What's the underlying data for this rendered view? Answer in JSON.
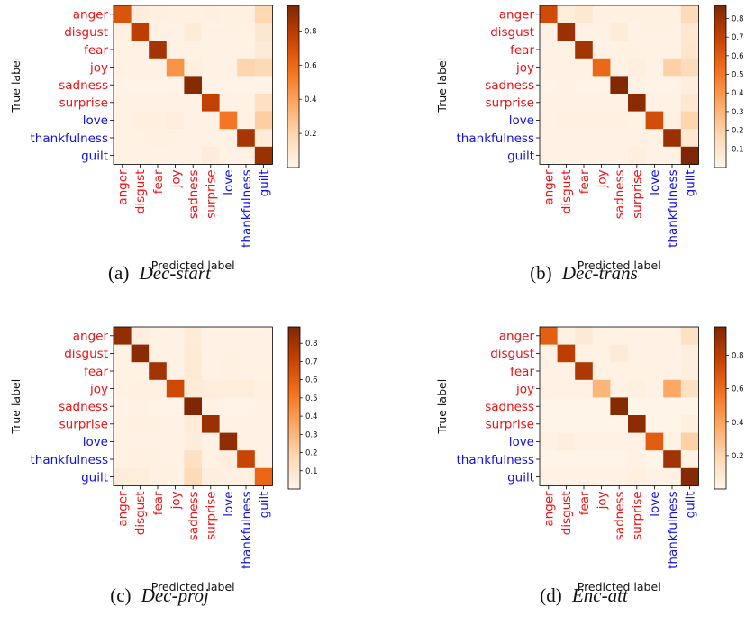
{
  "colors": {
    "class_a": "#ee1111",
    "class_b": "#1111dd"
  },
  "chart_data": [
    {
      "type": "heatmap",
      "caption_label": "(a)",
      "caption_name": "Dec-start",
      "xlabel": "Predicted label",
      "ylabel": "True label",
      "labels": [
        "anger",
        "disgust",
        "fear",
        "joy",
        "sadness",
        "surprise",
        "love",
        "thankfulness",
        "guilt"
      ],
      "label_colors": [
        "red",
        "red",
        "red",
        "red",
        "red",
        "red",
        "blue",
        "blue",
        "blue"
      ],
      "colorbar": {
        "min": 0,
        "max": 0.95,
        "ticks": [
          "0.2",
          "0.4",
          "0.6",
          "0.8"
        ],
        "tick_values": [
          0.2,
          0.4,
          0.6,
          0.8
        ]
      },
      "matrix": [
        [
          0.68,
          0.05,
          0.04,
          0.03,
          0.03,
          0.04,
          0.03,
          0.03,
          0.19
        ],
        [
          0.03,
          0.78,
          0.02,
          0.02,
          0.06,
          0.02,
          0.02,
          0.02,
          0.09
        ],
        [
          0.02,
          0.02,
          0.85,
          0.02,
          0.02,
          0.02,
          0.02,
          0.02,
          0.07
        ],
        [
          0.02,
          0.02,
          0.02,
          0.45,
          0.04,
          0.02,
          0.02,
          0.2,
          0.18
        ],
        [
          0.01,
          0.01,
          0.01,
          0.01,
          0.93,
          0.01,
          0.01,
          0.01,
          0.01
        ],
        [
          0.02,
          0.02,
          0.02,
          0.02,
          0.02,
          0.77,
          0.02,
          0.02,
          0.14
        ],
        [
          0.02,
          0.04,
          0.04,
          0.05,
          0.02,
          0.02,
          0.55,
          0.02,
          0.23
        ],
        [
          0.02,
          0.02,
          0.03,
          0.02,
          0.02,
          0.02,
          0.02,
          0.84,
          0.06
        ],
        [
          0.02,
          0.02,
          0.02,
          0.02,
          0.02,
          0.05,
          0.02,
          0.02,
          0.88
        ]
      ]
    },
    {
      "type": "heatmap",
      "caption_label": "(b)",
      "caption_name": "Dec-trans",
      "xlabel": "Predicted label",
      "ylabel": "True label",
      "labels": [
        "anger",
        "disgust",
        "fear",
        "joy",
        "sadness",
        "surprise",
        "love",
        "thankfulness",
        "guilt"
      ],
      "label_colors": [
        "red",
        "red",
        "red",
        "red",
        "red",
        "red",
        "blue",
        "blue",
        "blue"
      ],
      "colorbar": {
        "min": 0,
        "max": 0.87,
        "ticks": [
          "0.1",
          "0.2",
          "0.3",
          "0.4",
          "0.5",
          "0.6",
          "0.7",
          "0.8"
        ],
        "tick_values": [
          0.1,
          0.2,
          0.3,
          0.4,
          0.5,
          0.6,
          0.7,
          0.8
        ]
      },
      "matrix": [
        [
          0.66,
          0.05,
          0.08,
          0.03,
          0.03,
          0.03,
          0.03,
          0.03,
          0.16
        ],
        [
          0.02,
          0.8,
          0.02,
          0.02,
          0.06,
          0.02,
          0.02,
          0.02,
          0.08
        ],
        [
          0.02,
          0.02,
          0.78,
          0.02,
          0.02,
          0.02,
          0.02,
          0.02,
          0.09
        ],
        [
          0.02,
          0.02,
          0.02,
          0.55,
          0.02,
          0.04,
          0.02,
          0.2,
          0.15
        ],
        [
          0.01,
          0.02,
          0.01,
          0.01,
          0.86,
          0.02,
          0.01,
          0.01,
          0.04
        ],
        [
          0.02,
          0.02,
          0.02,
          0.02,
          0.02,
          0.84,
          0.02,
          0.02,
          0.08
        ],
        [
          0.02,
          0.03,
          0.03,
          0.03,
          0.03,
          0.02,
          0.65,
          0.03,
          0.18
        ],
        [
          0.02,
          0.02,
          0.02,
          0.02,
          0.02,
          0.02,
          0.02,
          0.8,
          0.08
        ],
        [
          0.02,
          0.02,
          0.02,
          0.02,
          0.02,
          0.04,
          0.02,
          0.02,
          0.87
        ]
      ]
    },
    {
      "type": "heatmap",
      "caption_label": "(c)",
      "caption_name": "Dec-proj",
      "xlabel": "Predicted label",
      "ylabel": "True label",
      "labels": [
        "anger",
        "disgust",
        "fear",
        "joy",
        "sadness",
        "surprise",
        "love",
        "thankfulness",
        "guilt"
      ],
      "label_colors": [
        "red",
        "red",
        "red",
        "red",
        "red",
        "red",
        "blue",
        "blue",
        "blue"
      ],
      "colorbar": {
        "min": 0,
        "max": 0.89,
        "ticks": [
          "0.1",
          "0.2",
          "0.3",
          "0.4",
          "0.5",
          "0.6",
          "0.7",
          "0.8"
        ],
        "tick_values": [
          0.1,
          0.2,
          0.3,
          0.4,
          0.5,
          0.6,
          0.7,
          0.8
        ]
      },
      "matrix": [
        [
          0.84,
          0.04,
          0.02,
          0.02,
          0.06,
          0.02,
          0.02,
          0.02,
          0.02
        ],
        [
          0.02,
          0.86,
          0.02,
          0.02,
          0.07,
          0.02,
          0.02,
          0.02,
          0.02
        ],
        [
          0.02,
          0.02,
          0.8,
          0.02,
          0.07,
          0.02,
          0.03,
          0.02,
          0.02
        ],
        [
          0.02,
          0.03,
          0.03,
          0.68,
          0.06,
          0.05,
          0.05,
          0.05,
          0.03
        ],
        [
          0.01,
          0.02,
          0.01,
          0.01,
          0.89,
          0.02,
          0.01,
          0.01,
          0.02
        ],
        [
          0.02,
          0.03,
          0.02,
          0.02,
          0.06,
          0.82,
          0.02,
          0.02,
          0.02
        ],
        [
          0.02,
          0.02,
          0.02,
          0.02,
          0.05,
          0.02,
          0.85,
          0.02,
          0.02
        ],
        [
          0.02,
          0.03,
          0.02,
          0.02,
          0.13,
          0.02,
          0.04,
          0.7,
          0.02
        ],
        [
          0.05,
          0.05,
          0.03,
          0.02,
          0.16,
          0.04,
          0.03,
          0.03,
          0.57
        ]
      ]
    },
    {
      "type": "heatmap",
      "caption_label": "(d)",
      "caption_name": "Enc-att",
      "xlabel": "Predicted label",
      "ylabel": "True label",
      "labels": [
        "anger",
        "disgust",
        "fear",
        "joy",
        "sadness",
        "surprise",
        "love",
        "thankfulness",
        "guilt"
      ],
      "label_colors": [
        "red",
        "red",
        "red",
        "red",
        "red",
        "red",
        "blue",
        "blue",
        "blue"
      ],
      "colorbar": {
        "min": 0,
        "max": 0.97,
        "ticks": [
          "0.2",
          "0.4",
          "0.6",
          "0.8"
        ],
        "tick_values": [
          0.2,
          0.4,
          0.6,
          0.8
        ]
      },
      "matrix": [
        [
          0.65,
          0.03,
          0.08,
          0.02,
          0.02,
          0.02,
          0.02,
          0.02,
          0.14
        ],
        [
          0.02,
          0.8,
          0.02,
          0.02,
          0.07,
          0.02,
          0.02,
          0.02,
          0.05
        ],
        [
          0.02,
          0.02,
          0.84,
          0.02,
          0.02,
          0.02,
          0.02,
          0.02,
          0.05
        ],
        [
          0.02,
          0.02,
          0.02,
          0.33,
          0.02,
          0.04,
          0.02,
          0.38,
          0.14
        ],
        [
          0.01,
          0.01,
          0.01,
          0.01,
          0.95,
          0.01,
          0.01,
          0.01,
          0.01
        ],
        [
          0.01,
          0.01,
          0.01,
          0.01,
          0.01,
          0.93,
          0.01,
          0.01,
          0.04
        ],
        [
          0.02,
          0.05,
          0.02,
          0.02,
          0.02,
          0.02,
          0.66,
          0.02,
          0.22
        ],
        [
          0.01,
          0.01,
          0.01,
          0.01,
          0.01,
          0.02,
          0.01,
          0.88,
          0.02
        ],
        [
          0.02,
          0.02,
          0.02,
          0.02,
          0.02,
          0.04,
          0.02,
          0.02,
          0.95
        ]
      ]
    }
  ]
}
